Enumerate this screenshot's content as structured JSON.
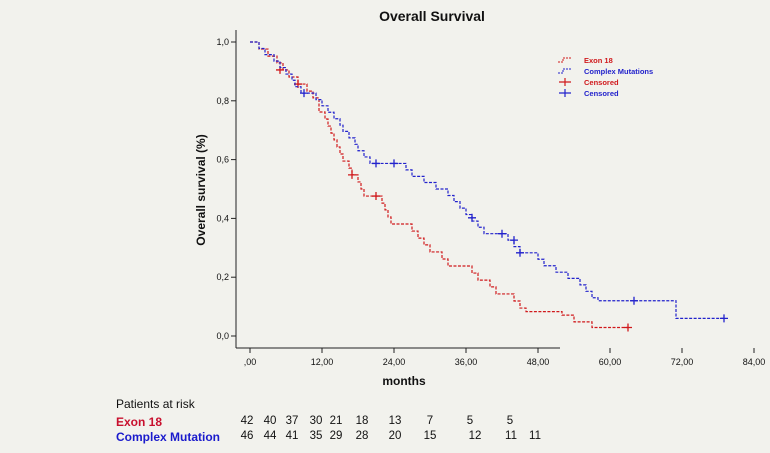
{
  "chart_data": {
    "type": "line",
    "title": "Overall Survival",
    "xlabel": "months",
    "ylabel": "Overall survival (%)",
    "xlim": [
      0,
      84
    ],
    "ylim": [
      0,
      1
    ],
    "x_ticks": [
      ",00",
      "12,00",
      "24,00",
      "36,00",
      "48,00",
      "60,00",
      "72,00",
      "84,00"
    ],
    "y_ticks": [
      "0,0",
      "0,2",
      "0,4",
      "0,6",
      "0,8",
      "1,0"
    ],
    "legend": [
      "Exon 18",
      "Complex Mutations",
      "Censored",
      "Censored"
    ],
    "series": [
      {
        "name": "Exon 18",
        "color": "#d0191c",
        "steps": [
          [
            0,
            1.0
          ],
          [
            1.5,
            0.976
          ],
          [
            3,
            0.952
          ],
          [
            4.5,
            0.929
          ],
          [
            5.5,
            0.905
          ],
          [
            6.5,
            0.881
          ],
          [
            8,
            0.857
          ],
          [
            9.5,
            0.833
          ],
          [
            10.5,
            0.81
          ],
          [
            11.5,
            0.762
          ],
          [
            12.5,
            0.738
          ],
          [
            13,
            0.714
          ],
          [
            13.5,
            0.69
          ],
          [
            14,
            0.667
          ],
          [
            14.5,
            0.643
          ],
          [
            15,
            0.619
          ],
          [
            15.5,
            0.595
          ],
          [
            16.5,
            0.571
          ],
          [
            17,
            0.548
          ],
          [
            18,
            0.524
          ],
          [
            18.5,
            0.5
          ],
          [
            19,
            0.476
          ],
          [
            22,
            0.452
          ],
          [
            22.5,
            0.429
          ],
          [
            23,
            0.405
          ],
          [
            23.5,
            0.381
          ],
          [
            27,
            0.357
          ],
          [
            28,
            0.333
          ],
          [
            29,
            0.31
          ],
          [
            30,
            0.286
          ],
          [
            32,
            0.262
          ],
          [
            33,
            0.238
          ],
          [
            37,
            0.214
          ],
          [
            38,
            0.19
          ],
          [
            40,
            0.167
          ],
          [
            41,
            0.143
          ],
          [
            44,
            0.119
          ],
          [
            45,
            0.095
          ],
          [
            46,
            0.083
          ],
          [
            52,
            0.071
          ],
          [
            54,
            0.048
          ],
          [
            57,
            0.029
          ],
          [
            63,
            0.029
          ]
        ],
        "censored": [
          [
            5,
            0.905
          ],
          [
            8,
            0.857
          ],
          [
            17,
            0.548
          ],
          [
            21,
            0.476
          ],
          [
            63,
            0.029
          ]
        ]
      },
      {
        "name": "Complex Mutations",
        "color": "#2222cc",
        "steps": [
          [
            0,
            1.0
          ],
          [
            1.5,
            0.978
          ],
          [
            2.5,
            0.957
          ],
          [
            4,
            0.935
          ],
          [
            5,
            0.913
          ],
          [
            6,
            0.891
          ],
          [
            7,
            0.87
          ],
          [
            7.5,
            0.848
          ],
          [
            8.5,
            0.826
          ],
          [
            11,
            0.804
          ],
          [
            12,
            0.783
          ],
          [
            13,
            0.761
          ],
          [
            14,
            0.739
          ],
          [
            15,
            0.717
          ],
          [
            15.5,
            0.696
          ],
          [
            16.5,
            0.674
          ],
          [
            17.5,
            0.652
          ],
          [
            18,
            0.63
          ],
          [
            19,
            0.609
          ],
          [
            20,
            0.587
          ],
          [
            26,
            0.565
          ],
          [
            27,
            0.543
          ],
          [
            29,
            0.522
          ],
          [
            31,
            0.5
          ],
          [
            33,
            0.478
          ],
          [
            34,
            0.457
          ],
          [
            35,
            0.435
          ],
          [
            36,
            0.413
          ],
          [
            37,
            0.391
          ],
          [
            38,
            0.37
          ],
          [
            39,
            0.348
          ],
          [
            43,
            0.326
          ],
          [
            44,
            0.304
          ],
          [
            45,
            0.283
          ],
          [
            48,
            0.261
          ],
          [
            49,
            0.239
          ],
          [
            51,
            0.217
          ],
          [
            53,
            0.196
          ],
          [
            55,
            0.174
          ],
          [
            56,
            0.152
          ],
          [
            57,
            0.13
          ],
          [
            58,
            0.12
          ],
          [
            67,
            0.12
          ],
          [
            71,
            0.06
          ],
          [
            79,
            0.06
          ]
        ],
        "censored": [
          [
            9,
            0.826
          ],
          [
            21,
            0.587
          ],
          [
            24,
            0.587
          ],
          [
            37,
            0.402
          ],
          [
            42,
            0.348
          ],
          [
            44,
            0.326
          ],
          [
            45,
            0.283
          ],
          [
            64,
            0.12
          ],
          [
            79,
            0.06
          ]
        ]
      }
    ]
  },
  "risk_table": {
    "heading": "Patients at risk",
    "rows": [
      {
        "label": "Exon 18",
        "values": [
          "42",
          "40",
          "37",
          "30",
          "21",
          "18",
          "13",
          "7",
          "5",
          "5"
        ]
      },
      {
        "label": "Complex Mutation",
        "values": [
          "46",
          "44",
          "41",
          "35",
          "29",
          "28",
          "20",
          "15",
          "12",
          "11",
          "11"
        ]
      }
    ]
  }
}
